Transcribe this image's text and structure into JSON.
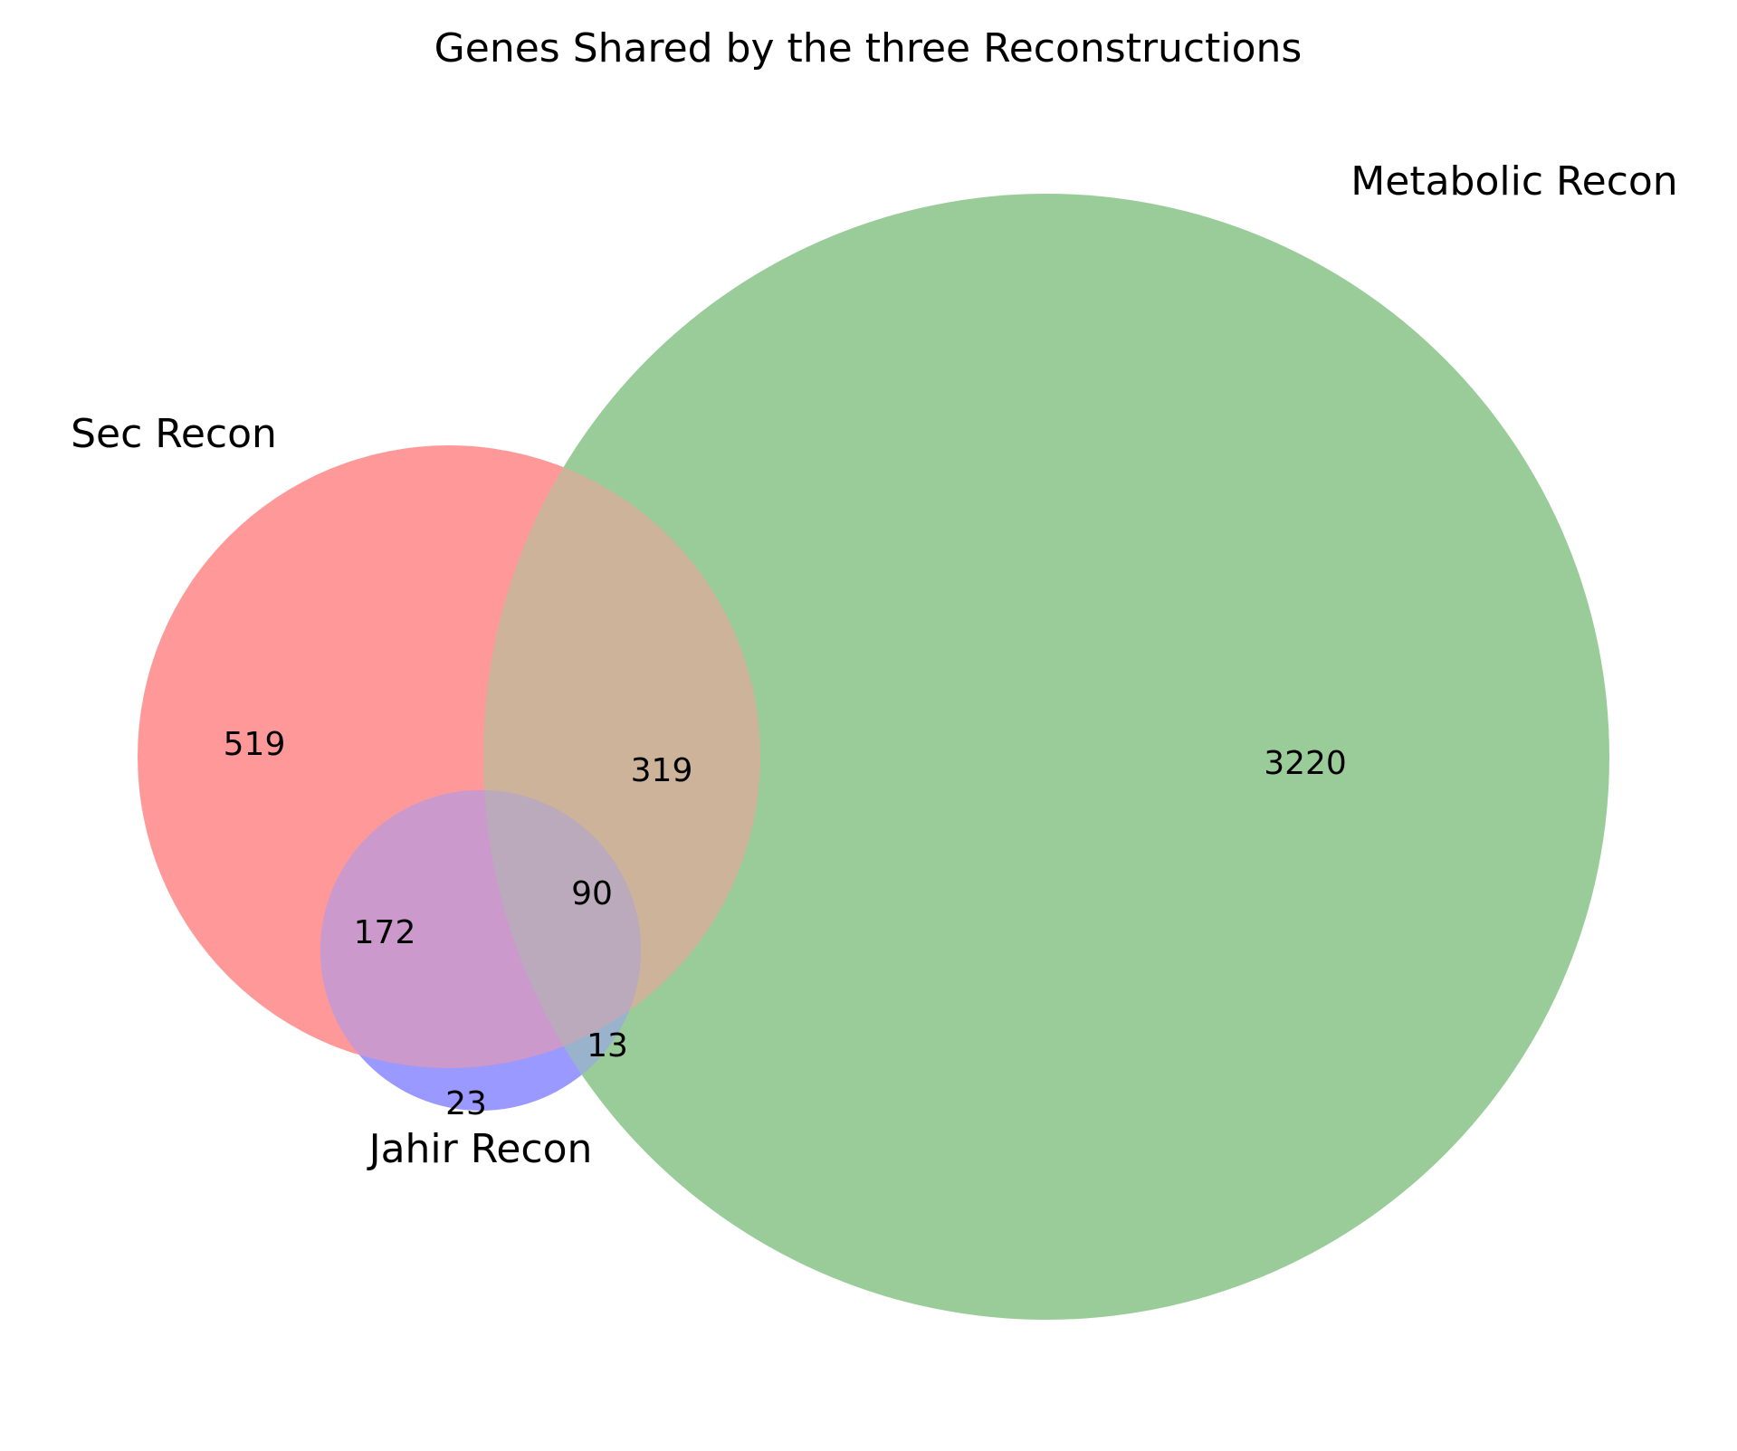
{
  "chart_data": {
    "type": "venn",
    "title": "Genes Shared by the three Reconstructions",
    "sets": [
      {
        "key": "A",
        "name": "Sec Recon",
        "color": "#ff0000"
      },
      {
        "key": "B",
        "name": "Metabolic Recon",
        "color": "#008000"
      },
      {
        "key": "C",
        "name": "Jahir Recon",
        "color": "#0000ff"
      }
    ],
    "regions": [
      {
        "sets": [
          "A"
        ],
        "value": 519
      },
      {
        "sets": [
          "B"
        ],
        "value": 3220
      },
      {
        "sets": [
          "C"
        ],
        "value": 23
      },
      {
        "sets": [
          "A",
          "B"
        ],
        "value": 319
      },
      {
        "sets": [
          "A",
          "C"
        ],
        "value": 172
      },
      {
        "sets": [
          "B",
          "C"
        ],
        "value": 13
      },
      {
        "sets": [
          "A",
          "B",
          "C"
        ],
        "value": 90
      }
    ],
    "fill_alpha": 0.4
  }
}
